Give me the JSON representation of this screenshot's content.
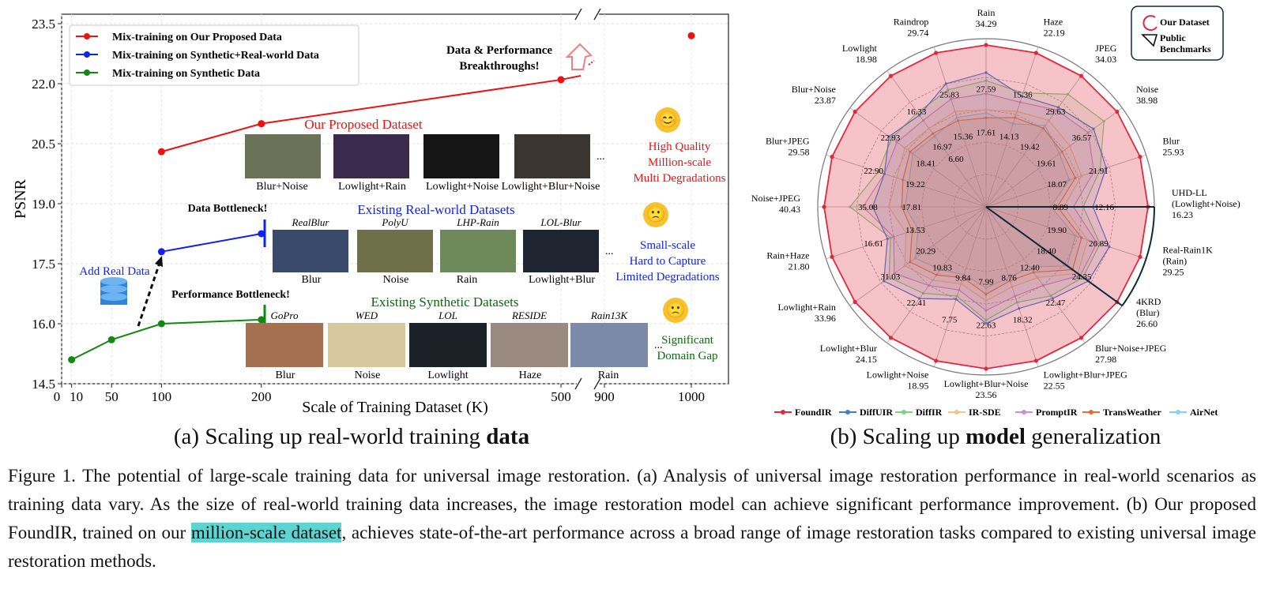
{
  "chart_data": [
    {
      "type": "line",
      "title": "",
      "xlabel": "Scale of Training Dataset (K)",
      "ylabel": "PSNR",
      "x_ticks": [
        "0",
        "10",
        "50",
        "100",
        "200",
        "500",
        "900",
        "1000"
      ],
      "y_ticks": [
        "14.5",
        "16.0",
        "17.5",
        "19.0",
        "20.5",
        "22.0",
        "23.5"
      ],
      "ylim": [
        14.5,
        23.5
      ],
      "grid": true,
      "legend_position": "top-left",
      "series": [
        {
          "name": "Mix-training on Our Proposed Data",
          "color": "#ee1111",
          "x": [
            100,
            200,
            500,
            1000
          ],
          "y": [
            20.3,
            21.0,
            22.1,
            23.2
          ]
        },
        {
          "name": "Mix-training on Synthetic+Real-world Data",
          "color": "#1122ee",
          "x": [
            100,
            200
          ],
          "y": [
            17.8,
            18.25
          ]
        },
        {
          "name": "Mix-training on Synthetic Data",
          "color": "#118811",
          "x": [
            10,
            50,
            100,
            200
          ],
          "y": [
            15.1,
            15.6,
            16.0,
            16.1
          ]
        }
      ],
      "annotations": {
        "breakthrough": [
          "Data & Performance",
          "Breakthroughs!"
        ],
        "data_bottleneck": "Data Bottleneck!",
        "perf_bottleneck": "Performance Bottleneck!",
        "add_real": "Add Real Data"
      },
      "groups": [
        {
          "title": "Our Proposed Dataset",
          "color": "#ee1111",
          "thumbs": [
            {
              "label": "Blur+Noise",
              "name": ""
            },
            {
              "label": "Lowlight+Rain",
              "name": ""
            },
            {
              "label": "Lowlight+Noise",
              "name": ""
            },
            {
              "label": "Lowlight+Blur+Noise",
              "name": ""
            }
          ],
          "desc": [
            "High Quality",
            "Million-scale",
            "Multi Degradations"
          ],
          "emoji": "😊"
        },
        {
          "title": "Existing Real-world Datasets",
          "color": "#1122ee",
          "thumbs": [
            {
              "label": "Blur",
              "name": "RealBlur"
            },
            {
              "label": "Noise",
              "name": "PolyU"
            },
            {
              "label": "Rain",
              "name": "LHP-Rain"
            },
            {
              "label": "Lowlight+Blur",
              "name": "LOL-Blur"
            }
          ],
          "desc": [
            "Small-scale",
            "Hard to Capture",
            "Limited Degradations"
          ],
          "emoji": "🙁"
        },
        {
          "title": "Existing Synthetic Datasets",
          "color": "#116611",
          "thumbs": [
            {
              "label": "Blur",
              "name": "GoPro"
            },
            {
              "label": "Noise",
              "name": "WED"
            },
            {
              "label": "Lowlight",
              "name": "LOL"
            },
            {
              "label": "Haze",
              "name": "RESIDE"
            },
            {
              "label": "Rain",
              "name": "Rain13K"
            }
          ],
          "desc": [
            "Significant",
            "Domain Gap"
          ],
          "emoji": "🙁"
        }
      ],
      "ellipsis": "..."
    },
    {
      "type": "radar",
      "axes": [
        {
          "label": [
            "Rain"
          ]
        },
        {
          "label": [
            "Haze"
          ]
        },
        {
          "label": [
            "JPEG"
          ]
        },
        {
          "label": [
            "Noise"
          ]
        },
        {
          "label": [
            "Blur"
          ]
        },
        {
          "label": [
            "UHD-LL",
            "(Lowlight+Noise)"
          ]
        },
        {
          "label": [
            "Real-Rain1K",
            "(Rain)"
          ]
        },
        {
          "label": [
            "4KRD",
            "(Blur)"
          ]
        },
        {
          "label": [
            "Blur+Noise+JPEG"
          ]
        },
        {
          "label": [
            "Lowlight+Blur+JPEG"
          ]
        },
        {
          "label": [
            "Lowlight+Blur+Noise"
          ]
        },
        {
          "label": [
            "Lowlight+Noise"
          ]
        },
        {
          "label": [
            "Lowlight+Blur"
          ]
        },
        {
          "label": [
            "Lowlight+Rain"
          ]
        },
        {
          "label": [
            "Rain+Haze"
          ]
        },
        {
          "label": [
            "Noise+JPEG"
          ]
        },
        {
          "label": [
            "Blur+JPEG"
          ]
        },
        {
          "label": [
            "Blur+Noise"
          ]
        },
        {
          "label": [
            "Lowlight"
          ]
        },
        {
          "label": [
            "Raindrop"
          ]
        }
      ],
      "max_values": [
        "34.29",
        "22.19",
        "34.03",
        "38.98",
        "25.93",
        "16.23",
        "29.25",
        "26.60",
        "27.98",
        "22.55",
        "23.56",
        "18.95",
        "24.15",
        "33.96",
        "21.80",
        "40.43",
        "29.58",
        "23.87",
        "18.98",
        "29.74"
      ],
      "min_values": [
        "17.61",
        "14.13",
        "19.42",
        "19.61",
        "18.07",
        "8.89",
        "19.90",
        "18.40",
        "12.40",
        "8.76",
        "7.99",
        "9.84",
        "10.83",
        "20.29",
        "13.53",
        "17.81",
        "19.22",
        "18.41",
        "16.97",
        "15.36"
      ],
      "inner_values": [
        "27.59",
        "15.36",
        "29.63",
        "36.57",
        "21.91",
        "12.16",
        "26.89",
        "24.35",
        "22.47",
        "18.32",
        "22.63",
        "7.75",
        "22.41",
        "31.03",
        "16.61",
        "35.08",
        "22.90",
        "22.93",
        "16.33",
        "25.83"
      ],
      "extra_values": [
        "6.60"
      ],
      "series": [
        {
          "name": "FoundIR",
          "color": "#e0283c",
          "r": [
            1,
            1,
            1,
            1,
            1,
            1,
            1,
            1,
            1,
            1,
            1,
            1,
            1,
            1,
            1,
            1,
            1,
            1,
            1,
            1
          ]
        },
        {
          "name": "DiffUIR",
          "color": "#3a7fd0",
          "r": [
            0.83,
            0.72,
            0.76,
            0.82,
            0.78,
            0.66,
            0.8,
            0.78,
            0.7,
            0.66,
            0.72,
            0.6,
            0.7,
            0.78,
            0.64,
            0.7,
            0.66,
            0.74,
            0.7,
            0.8
          ]
        },
        {
          "name": "DiffIR",
          "color": "#7fd07f",
          "r": [
            0.78,
            0.74,
            0.86,
            0.9,
            0.74,
            0.6,
            0.74,
            0.74,
            0.68,
            0.62,
            0.7,
            0.58,
            0.66,
            0.74,
            0.62,
            0.84,
            0.7,
            0.72,
            0.72,
            0.76
          ]
        },
        {
          "name": "IR-SDE",
          "color": "#f2c48a",
          "r": [
            0.6,
            0.62,
            0.66,
            0.64,
            0.62,
            0.48,
            0.66,
            0.7,
            0.54,
            0.52,
            0.58,
            0.5,
            0.56,
            0.62,
            0.52,
            0.6,
            0.58,
            0.62,
            0.6,
            0.62
          ]
        },
        {
          "name": "PromptIR",
          "color": "#d18ad6",
          "r": [
            0.7,
            0.68,
            0.74,
            0.78,
            0.7,
            0.54,
            0.72,
            0.72,
            0.6,
            0.58,
            0.64,
            0.54,
            0.6,
            0.7,
            0.6,
            0.76,
            0.66,
            0.68,
            0.66,
            0.7
          ]
        },
        {
          "name": "TransWeather",
          "color": "#e07030",
          "r": [
            0.55,
            0.58,
            0.6,
            0.58,
            0.58,
            0.44,
            0.62,
            0.66,
            0.5,
            0.48,
            0.54,
            0.46,
            0.52,
            0.58,
            0.48,
            0.52,
            0.54,
            0.58,
            0.56,
            0.56
          ]
        },
        {
          "name": "AirNet",
          "color": "#7fd4f2",
          "r": [
            0.58,
            0.54,
            0.62,
            0.56,
            0.54,
            0.4,
            0.58,
            0.62,
            0.46,
            0.46,
            0.5,
            0.44,
            0.48,
            0.54,
            0.44,
            0.5,
            0.5,
            0.56,
            0.54,
            0.58
          ]
        }
      ],
      "legend_box": [
        "Our Dataset",
        "Public",
        "Benchmarks"
      ],
      "legend_position": "bottom"
    }
  ],
  "subcaptions": {
    "a_pre": "(a) Scaling up real-world training ",
    "a_bold": "data",
    "b_pre": "(b) Scaling up ",
    "b_bold": "model",
    "b_post": " generalization"
  },
  "caption": {
    "pre": "Figure 1.  The potential of large-scale training data for universal image restoration. (a) Analysis of universal image restoration performance in real-world scenarios as training data vary. As the size of real-world training data increases, the image restoration model can achieve significant performance improvement. (b) Our proposed FoundIR, trained on our ",
    "highlight": "million-scale dataset",
    "post": ", achieves state-of-the-art performance across a broad range of image restoration tasks compared to existing universal image restoration methods."
  }
}
